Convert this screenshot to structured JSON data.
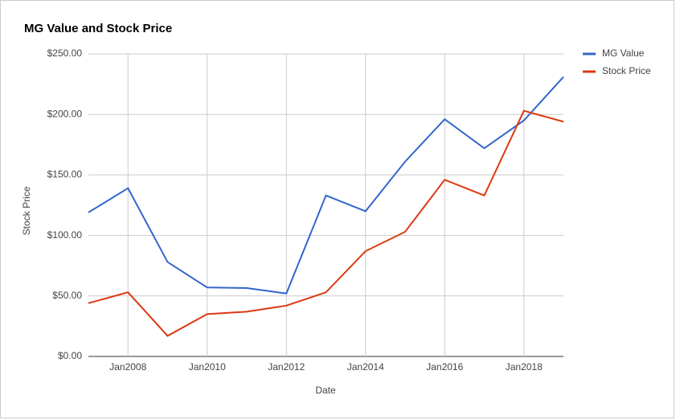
{
  "chart_data": {
    "type": "line",
    "title": "MG Value and Stock Price",
    "x_label": "Date",
    "y_label": "Stock Price",
    "x": [
      "2007-01",
      "2008-01",
      "2009-01",
      "2010-01",
      "2011-01",
      "2012-01",
      "2013-01",
      "2014-01",
      "2015-01",
      "2016-01",
      "2017-01",
      "2018-01",
      "2019-01"
    ],
    "xlim": [
      "2007-01",
      "2019-01"
    ],
    "xticks": [
      {
        "value": "2008-01",
        "label": "Jan2008"
      },
      {
        "value": "2010-01",
        "label": "Jan2010"
      },
      {
        "value": "2012-01",
        "label": "Jan2012"
      },
      {
        "value": "2014-01",
        "label": "Jan2014"
      },
      {
        "value": "2016-01",
        "label": "Jan2016"
      },
      {
        "value": "2018-01",
        "label": "Jan2018"
      }
    ],
    "ylim": [
      0,
      250
    ],
    "yticks": [
      {
        "value": 0,
        "label": "$0.00"
      },
      {
        "value": 50,
        "label": "$50.00"
      },
      {
        "value": 100,
        "label": "$100.00"
      },
      {
        "value": 150,
        "label": "$150.00"
      },
      {
        "value": 200,
        "label": "$200.00"
      },
      {
        "value": 250,
        "label": "$250.00"
      }
    ],
    "grid": true,
    "legend": "right",
    "series": [
      {
        "name": "MG Value",
        "color": "#3366cc",
        "values": [
          119,
          139,
          78,
          57,
          56.5,
          52,
          133,
          120,
          161,
          196,
          172,
          195,
          231
        ]
      },
      {
        "name": "Stock Price",
        "color": "#dc3912",
        "values": [
          44,
          53,
          17,
          35,
          37,
          42,
          53,
          87,
          103,
          146,
          133,
          203,
          194
        ]
      }
    ]
  }
}
